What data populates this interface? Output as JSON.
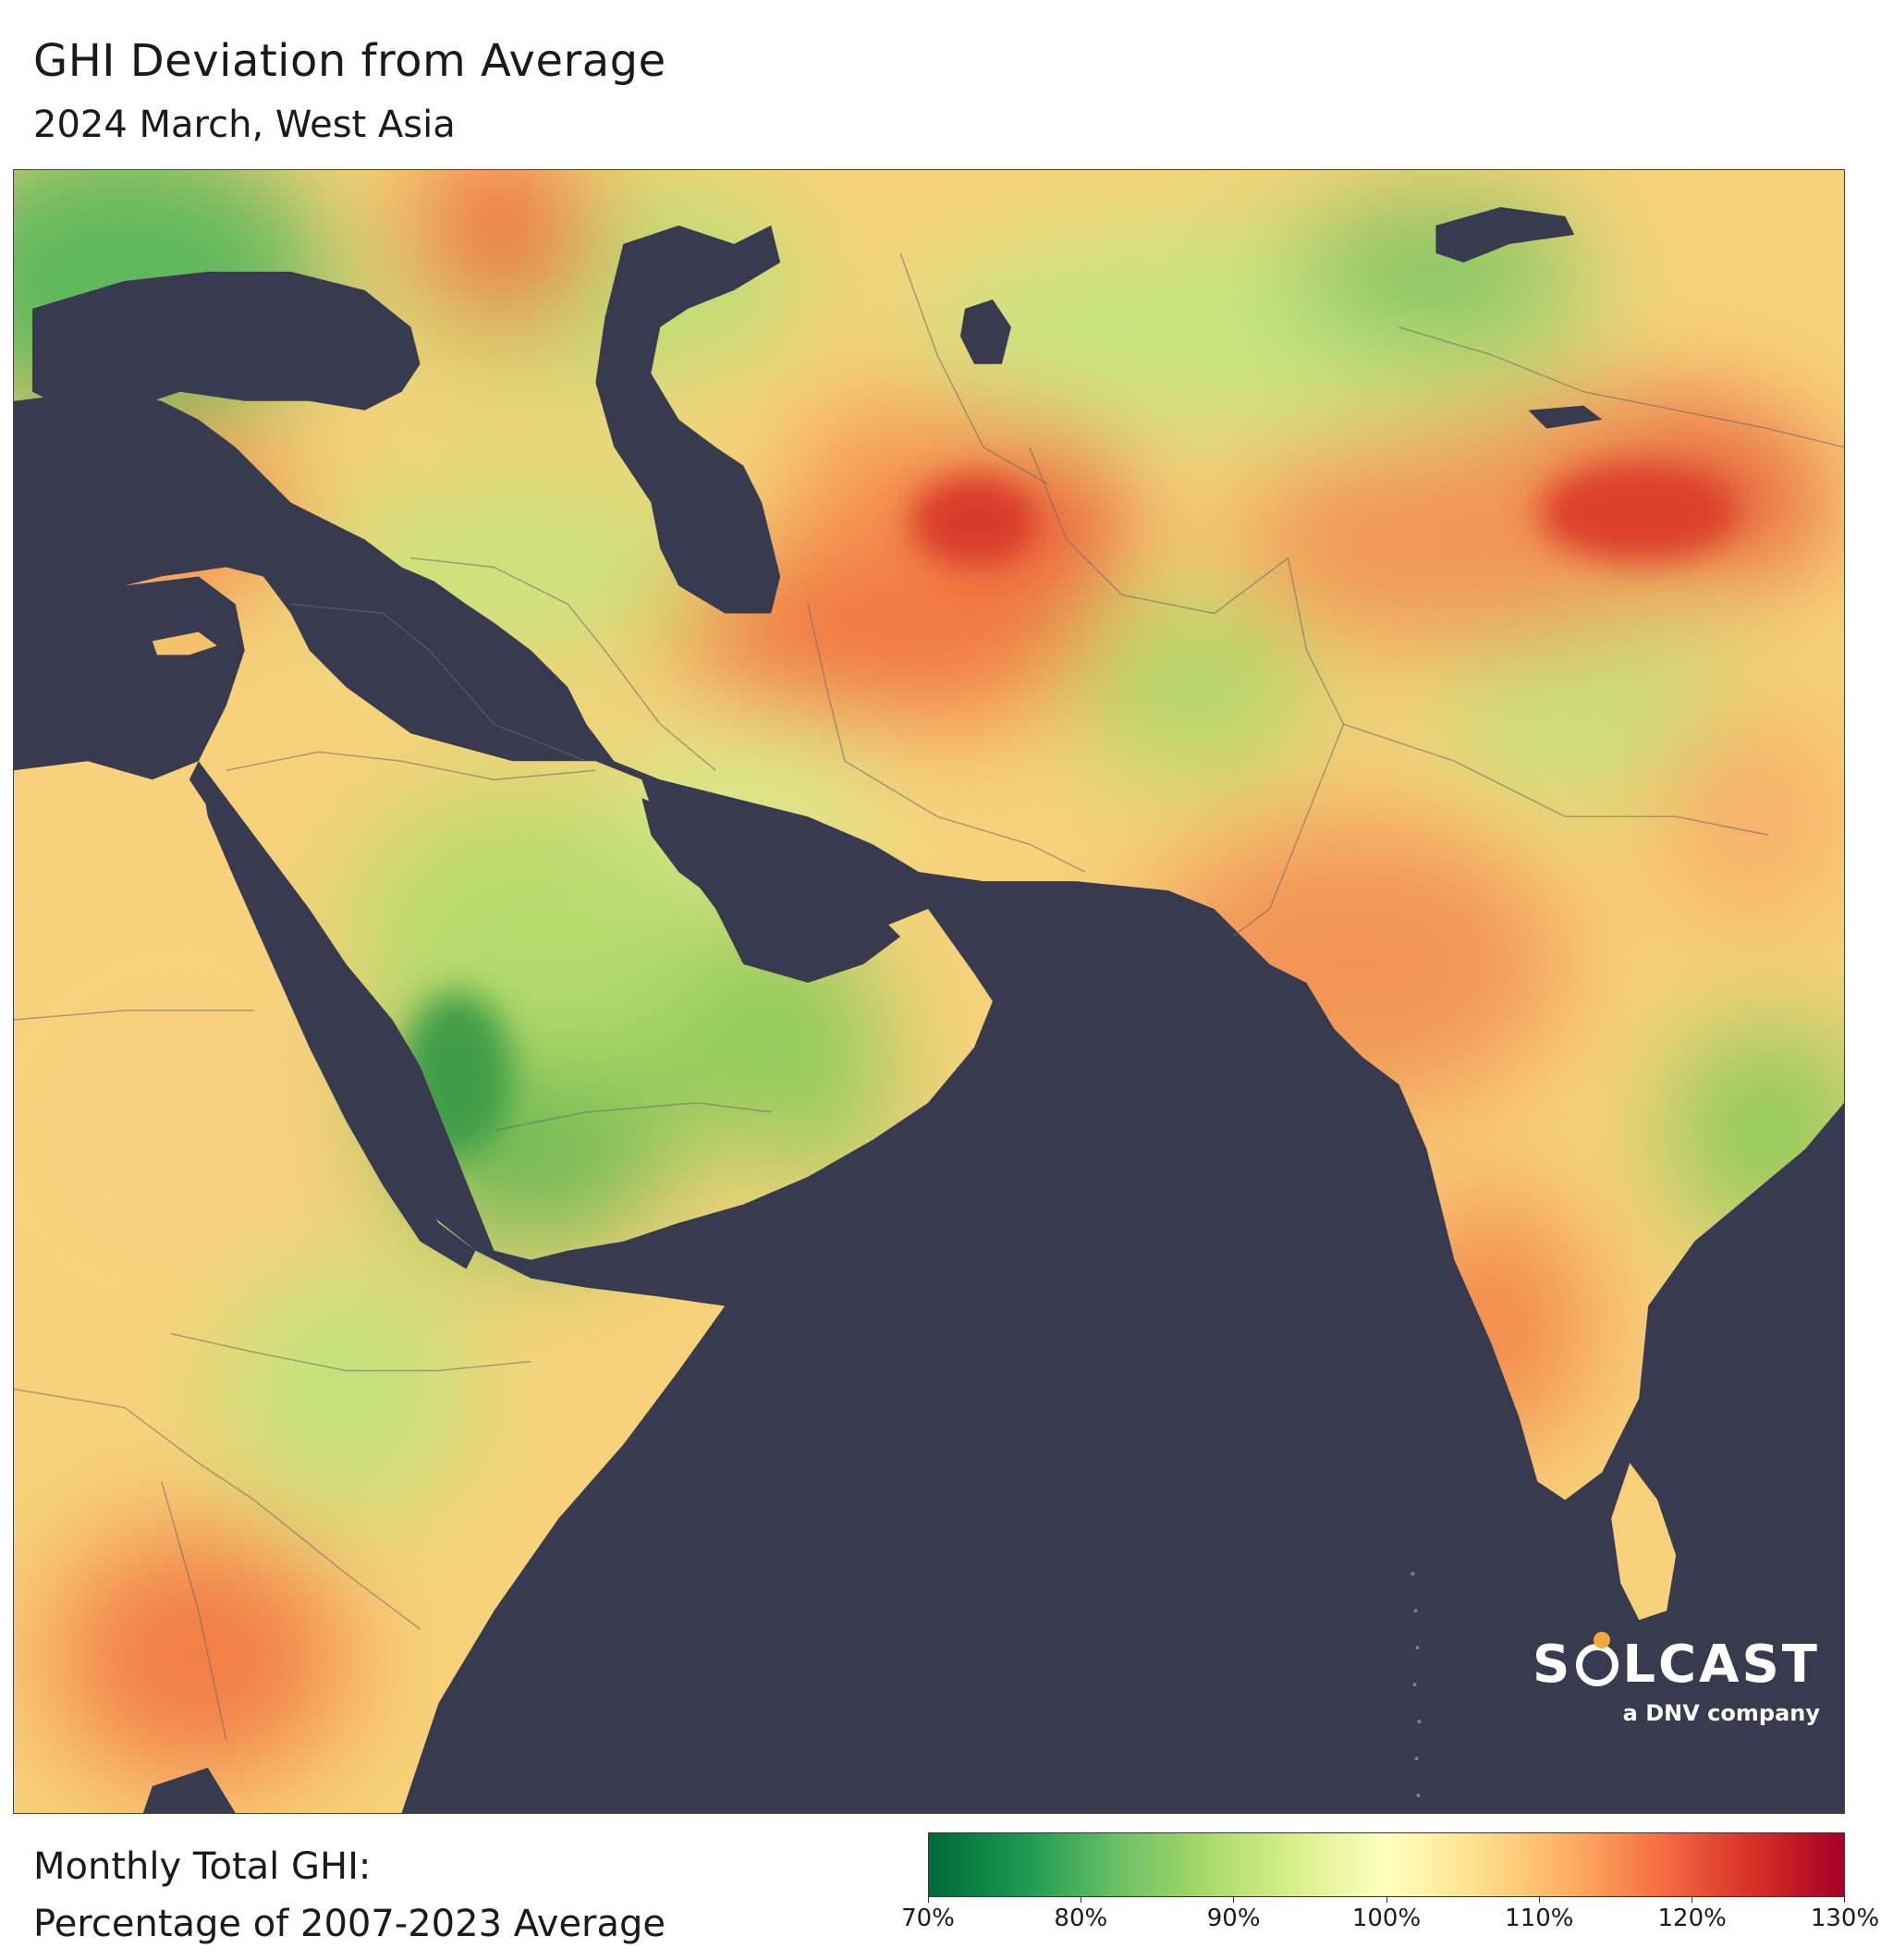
{
  "header": {
    "title": "GHI Deviation from Average",
    "subtitle": "2024 March, West Asia"
  },
  "logo": {
    "word_left": "S",
    "word_right": "LCAST",
    "tagline": "a DNV company"
  },
  "legend": {
    "line1": "Monthly Total GHI:",
    "line2": "Percentage of 2007-2023 Average",
    "ticks": [
      "70%",
      "80%",
      "90%",
      "100%",
      "110%",
      "120%",
      "130%"
    ],
    "range": [
      70,
      130
    ],
    "colors": [
      "#006837",
      "#1a9850",
      "#66bd63",
      "#a6d96a",
      "#d9ef8b",
      "#ffffbf",
      "#fee08b",
      "#fdae61",
      "#f46d43",
      "#d73027",
      "#a50026"
    ]
  },
  "map": {
    "water_color": "#383a4f",
    "land_base_color": "#f7d27a"
  }
}
